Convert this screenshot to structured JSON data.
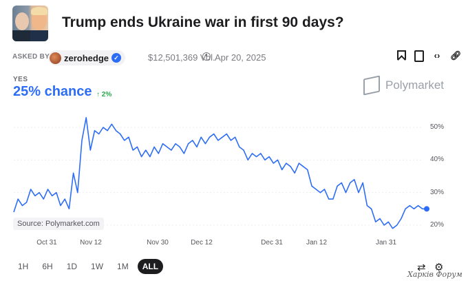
{
  "market": {
    "title": "Trump ends Ukraine war in first 90 days?",
    "asked_by_label": "ASKED BY",
    "user": "zerohedge",
    "volume": "$12,501,369 Vol.",
    "date": "Apr 20, 2025"
  },
  "outcome": {
    "label": "YES",
    "chance": "25% chance",
    "change": "↑ 2%"
  },
  "brand": "Polymarket",
  "source": "Source: Polymarket.com",
  "icons": [
    "bookmark-icon",
    "document-icon",
    "embed-icon",
    "link-icon",
    "swap-icon",
    "settings-icon"
  ],
  "ranges": {
    "selected": "ALL",
    "items": [
      "1H",
      "6H",
      "1D",
      "1W",
      "1M",
      "ALL"
    ]
  },
  "watermark": "Харків Форум",
  "chart_data": {
    "type": "line",
    "xticks": [
      "Oct 31",
      "Nov 12",
      "Nov 30",
      "Dec 12",
      "Dec 31",
      "Jan 12",
      "Jan 31"
    ],
    "yticks": [
      "50%",
      "40%",
      "30%",
      "20%"
    ],
    "ylim": [
      18,
      52
    ],
    "color": "#2d6df6",
    "series": [
      {
        "values": [
          24,
          28,
          26,
          27,
          31,
          29,
          30,
          28,
          31,
          29,
          30,
          26,
          28,
          25,
          36,
          30,
          46,
          53,
          43,
          49,
          48,
          50,
          49,
          51,
          49,
          48,
          46,
          47,
          43,
          44,
          41,
          43,
          41,
          44,
          42,
          45,
          44,
          43,
          45,
          44,
          42,
          45,
          46,
          44,
          47,
          45,
          47,
          48,
          46,
          47,
          48,
          46,
          47,
          44,
          43,
          40,
          42,
          41,
          42,
          40,
          41,
          39,
          40,
          37,
          39,
          38,
          36,
          39,
          38,
          37,
          32,
          31,
          30,
          31,
          28,
          28,
          32,
          33,
          30,
          33,
          34,
          30,
          33,
          26,
          25,
          21,
          22,
          20,
          21,
          19,
          20,
          22,
          25,
          26,
          25,
          26,
          25,
          25
        ]
      }
    ]
  }
}
